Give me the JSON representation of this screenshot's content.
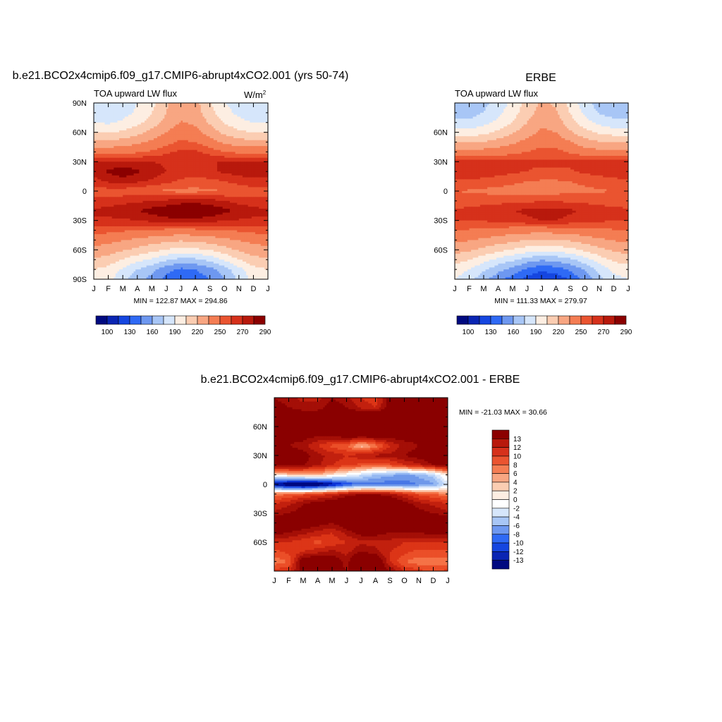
{
  "colors": {
    "positive_ramp": [
      "#fde3d3",
      "#fcbfa1",
      "#fb9a72",
      "#f57347",
      "#eb4f28",
      "#dc3517",
      "#c2200e",
      "#a40f07",
      "#8a0000"
    ],
    "negative_ramp": [
      "#dbe8fb",
      "#b8d2f8",
      "#95b8f2",
      "#6f98ea",
      "#4877e6",
      "#2454ea",
      "#0c33d6",
      "#0018a8",
      "#000880"
    ],
    "neutral": "#ffffff"
  },
  "chart_data": [
    {
      "type": "heatmap",
      "id": "model",
      "title": "b.e21.BCO2x4cmip6.f09_g17.CMIP6-abrupt4xCO2.001 (yrs 50-74)",
      "variable_label": "TOA upward LW flux",
      "units": "W/m",
      "units_superscript": "2",
      "x_ticks": [
        "J",
        "F",
        "M",
        "A",
        "M",
        "J",
        "J",
        "A",
        "S",
        "O",
        "N",
        "D",
        "J"
      ],
      "y_ticks": [
        "90N",
        "60N",
        "30N",
        "0",
        "30S",
        "60S",
        "90S"
      ],
      "ylim": [
        -90,
        90
      ],
      "stats": "MIN = 122.87 MAX = 294.86",
      "min": 122.87,
      "max": 294.86,
      "colorbar_levels": [
        100,
        130,
        160,
        190,
        220,
        250,
        270,
        290
      ],
      "colorbar_colors": [
        "#000a80",
        "#0a25b3",
        "#1546e0",
        "#2f6af5",
        "#6e98f0",
        "#a8c6f6",
        "#d6e6fb",
        "#fdeee2",
        "#fbcdb2",
        "#f8a682",
        "#f47d53",
        "#ea5430",
        "#d6311b",
        "#b8190c",
        "#8b0000"
      ],
      "field": {
        "lat": [
          -90,
          -80,
          -70,
          -60,
          -50,
          -40,
          -30,
          -20,
          -10,
          0,
          10,
          20,
          30,
          40,
          50,
          60,
          70,
          80,
          90
        ],
        "months": [
          "J",
          "F",
          "M",
          "A",
          "M",
          "J",
          "J",
          "A",
          "S",
          "O",
          "N",
          "D",
          "J"
        ],
        "values": [
          [
            200,
            195,
            180,
            165,
            155,
            140,
            130,
            135,
            145,
            160,
            178,
            195,
            200
          ],
          [
            205,
            200,
            188,
            175,
            165,
            150,
            142,
            145,
            155,
            168,
            185,
            200,
            205
          ],
          [
            218,
            214,
            204,
            195,
            188,
            178,
            170,
            172,
            180,
            192,
            205,
            215,
            218
          ],
          [
            230,
            228,
            222,
            216,
            210,
            204,
            200,
            202,
            206,
            214,
            222,
            228,
            230
          ],
          [
            242,
            240,
            236,
            232,
            228,
            225,
            222,
            224,
            227,
            232,
            236,
            240,
            242
          ],
          [
            255,
            254,
            252,
            250,
            248,
            247,
            246,
            247,
            248,
            250,
            252,
            254,
            255
          ],
          [
            268,
            268,
            268,
            270,
            273,
            276,
            278,
            277,
            274,
            271,
            269,
            268,
            268
          ],
          [
            272,
            274,
            277,
            280,
            284,
            288,
            292,
            293,
            289,
            283,
            278,
            274,
            272
          ],
          [
            262,
            264,
            266,
            268,
            270,
            272,
            275,
            276,
            274,
            270,
            266,
            263,
            262
          ],
          [
            256,
            255,
            254,
            252,
            250,
            248,
            247,
            247,
            248,
            250,
            252,
            255,
            256
          ],
          [
            266,
            272,
            276,
            272,
            268,
            263,
            258,
            256,
            257,
            260,
            264,
            267,
            266
          ],
          [
            274,
            282,
            286,
            282,
            276,
            270,
            266,
            266,
            268,
            272,
            275,
            276,
            274
          ],
          [
            270,
            272,
            272,
            271,
            270,
            268,
            268,
            269,
            270,
            270,
            270,
            271,
            270
          ],
          [
            245,
            245,
            246,
            248,
            252,
            258,
            262,
            262,
            256,
            250,
            247,
            245,
            245
          ],
          [
            225,
            224,
            226,
            232,
            238,
            246,
            252,
            250,
            242,
            232,
            226,
            225,
            225
          ],
          [
            205,
            203,
            208,
            215,
            225,
            235,
            244,
            240,
            228,
            216,
            208,
            205,
            205
          ],
          [
            190,
            188,
            193,
            200,
            212,
            225,
            236,
            232,
            218,
            204,
            195,
            190,
            190
          ],
          [
            180,
            178,
            184,
            193,
            205,
            220,
            232,
            228,
            210,
            196,
            186,
            180,
            180
          ],
          [
            176,
            175,
            180,
            190,
            200,
            218,
            230,
            225,
            206,
            190,
            182,
            178,
            176
          ]
        ]
      }
    },
    {
      "type": "heatmap",
      "id": "obs",
      "title": "ERBE",
      "variable_label": "TOA upward LW flux",
      "x_ticks": [
        "J",
        "F",
        "M",
        "A",
        "M",
        "J",
        "J",
        "A",
        "S",
        "O",
        "N",
        "D",
        "J"
      ],
      "y_ticks": [
        "60N",
        "30N",
        "0",
        "30S",
        "60S"
      ],
      "ylim": [
        -90,
        90
      ],
      "stats": "MIN = 111.33 MAX = 279.97",
      "min": 111.33,
      "max": 279.97,
      "colorbar_levels": [
        100,
        130,
        160,
        190,
        220,
        250,
        270,
        290
      ],
      "colorbar_colors": [
        "#000a80",
        "#0a25b3",
        "#1546e0",
        "#2f6af5",
        "#6e98f0",
        "#a8c6f6",
        "#d6e6fb",
        "#fdeee2",
        "#fbcdb2",
        "#f8a682",
        "#f47d53",
        "#ea5430",
        "#d6311b",
        "#b8190c",
        "#8b0000"
      ],
      "field": {
        "lat": [
          -90,
          -80,
          -70,
          -60,
          -50,
          -40,
          -30,
          -20,
          -10,
          0,
          10,
          20,
          30,
          40,
          50,
          60,
          70,
          80,
          90
        ],
        "months": [
          "J",
          "F",
          "M",
          "A",
          "M",
          "J",
          "J",
          "A",
          "S",
          "O",
          "N",
          "D",
          "J"
        ],
        "values": [
          [
            190,
            180,
            165,
            150,
            138,
            125,
            115,
            120,
            132,
            150,
            170,
            185,
            190
          ],
          [
            198,
            190,
            178,
            165,
            155,
            142,
            134,
            138,
            148,
            162,
            180,
            194,
            198
          ],
          [
            212,
            206,
            196,
            186,
            178,
            168,
            162,
            165,
            172,
            184,
            198,
            208,
            212
          ],
          [
            226,
            222,
            216,
            210,
            204,
            198,
            194,
            196,
            200,
            208,
            216,
            222,
            226
          ],
          [
            238,
            236,
            232,
            228,
            224,
            220,
            218,
            220,
            222,
            228,
            232,
            236,
            238
          ],
          [
            250,
            249,
            247,
            245,
            243,
            242,
            241,
            242,
            243,
            245,
            247,
            249,
            250
          ],
          [
            260,
            260,
            261,
            263,
            266,
            268,
            270,
            270,
            267,
            264,
            262,
            260,
            260
          ],
          [
            262,
            263,
            266,
            268,
            270,
            272,
            274,
            274,
            272,
            268,
            265,
            263,
            262
          ],
          [
            254,
            254,
            255,
            256,
            257,
            258,
            259,
            259,
            258,
            257,
            256,
            255,
            254
          ],
          [
            250,
            249,
            248,
            247,
            246,
            245,
            245,
            246,
            247,
            248,
            249,
            250,
            250
          ],
          [
            258,
            258,
            256,
            254,
            252,
            250,
            249,
            249,
            250,
            252,
            254,
            256,
            258
          ],
          [
            270,
            270,
            268,
            265,
            262,
            260,
            258,
            258,
            259,
            262,
            265,
            268,
            270
          ],
          [
            264,
            264,
            263,
            262,
            262,
            262,
            262,
            262,
            262,
            262,
            263,
            264,
            264
          ],
          [
            240,
            240,
            241,
            243,
            246,
            250,
            254,
            254,
            248,
            243,
            240,
            240,
            240
          ],
          [
            220,
            219,
            221,
            226,
            232,
            240,
            246,
            244,
            236,
            226,
            221,
            220,
            220
          ],
          [
            198,
            196,
            200,
            208,
            218,
            228,
            238,
            235,
            222,
            210,
            202,
            198,
            198
          ],
          [
            180,
            178,
            185,
            194,
            206,
            220,
            232,
            228,
            212,
            196,
            186,
            180,
            180
          ],
          [
            168,
            168,
            176,
            186,
            198,
            214,
            226,
            222,
            204,
            186,
            174,
            168,
            168
          ],
          [
            160,
            162,
            170,
            182,
            194,
            210,
            222,
            218,
            200,
            180,
            168,
            162,
            160
          ]
        ]
      }
    },
    {
      "type": "heatmap",
      "id": "diff",
      "title": "b.e21.BCO2x4cmip6.f09_g17.CMIP6-abrupt4xCO2.001 - ERBE",
      "x_ticks": [
        "J",
        "F",
        "M",
        "A",
        "M",
        "J",
        "J",
        "A",
        "S",
        "O",
        "N",
        "D",
        "J"
      ],
      "y_ticks": [
        "60N",
        "30N",
        "0",
        "30S",
        "60S"
      ],
      "ylim": [
        -90,
        90
      ],
      "stats": "MIN = -21.03 MAX =  30.66",
      "min": -21.03,
      "max": 30.66,
      "colorbar_labels": [
        "13",
        "12",
        "10",
        "8",
        "6",
        "4",
        "2",
        "0",
        "-2",
        "-4",
        "-6",
        "-8",
        "-10",
        "-12",
        "-13"
      ],
      "colorbar_colors": [
        "#8b0000",
        "#b8190c",
        "#d6311b",
        "#ea5430",
        "#f47d53",
        "#f8a682",
        "#fbcdb2",
        "#fdeee2",
        "#ffffff",
        "#d6e6fb",
        "#a8c6f6",
        "#6e98f0",
        "#2f6af5",
        "#1546e0",
        "#0a25b3",
        "#000a80"
      ],
      "field": {
        "lat": [
          -90,
          -80,
          -70,
          -60,
          -50,
          -40,
          -30,
          -20,
          -10,
          0,
          10,
          20,
          30,
          40,
          50,
          60,
          70,
          80,
          90
        ],
        "months": [
          "J",
          "F",
          "M",
          "A",
          "M",
          "J",
          "J",
          "A",
          "S",
          "O",
          "N",
          "D",
          "J"
        ],
        "values": [
          [
            9,
            10,
            14,
            14,
            15,
            13,
            14,
            15,
            13,
            10,
            9,
            8,
            9
          ],
          [
            6,
            7,
            15,
            16,
            15,
            12,
            18,
            16,
            10,
            7,
            6,
            6,
            6
          ],
          [
            8,
            9,
            10,
            11,
            12,
            11,
            13,
            12,
            10,
            9,
            8,
            8,
            8
          ],
          [
            10,
            10,
            9,
            8,
            9,
            10,
            11,
            11,
            11,
            10,
            10,
            10,
            10
          ],
          [
            14,
            13,
            12,
            11,
            10,
            12,
            14,
            14,
            13,
            13,
            13,
            14,
            14
          ],
          [
            16,
            16,
            15,
            14,
            13,
            15,
            16,
            17,
            16,
            16,
            16,
            16,
            16
          ],
          [
            12,
            13,
            14,
            15,
            15,
            16,
            17,
            17,
            16,
            15,
            14,
            13,
            12
          ],
          [
            10,
            11,
            13,
            14,
            15,
            16,
            17,
            17,
            16,
            14,
            12,
            11,
            10
          ],
          [
            6,
            7,
            8,
            9,
            10,
            12,
            13,
            13,
            12,
            10,
            8,
            7,
            6
          ],
          [
            -13,
            -16,
            -18,
            -16,
            -13,
            -10,
            -8,
            -8,
            -8,
            -8,
            -7,
            -6,
            -2
          ],
          [
            2,
            3,
            4,
            4,
            2,
            0,
            -2,
            -4,
            -5,
            -6,
            -5,
            -3,
            2
          ],
          [
            14,
            14,
            13,
            12,
            10,
            9,
            8,
            7,
            8,
            10,
            11,
            13,
            14
          ],
          [
            15,
            15,
            14,
            12,
            11,
            10,
            11,
            12,
            12,
            13,
            14,
            15,
            15
          ],
          [
            14,
            13,
            12,
            10,
            8,
            7,
            3,
            6,
            10,
            12,
            13,
            14,
            14
          ],
          [
            15,
            14,
            14,
            13,
            13,
            14,
            14,
            14,
            14,
            14,
            14,
            15,
            15
          ],
          [
            15,
            15,
            15,
            15,
            16,
            16,
            15,
            15,
            15,
            15,
            15,
            15,
            15
          ],
          [
            15,
            15,
            15,
            15,
            16,
            16,
            16,
            16,
            16,
            15,
            15,
            15,
            15
          ],
          [
            14,
            13,
            12,
            12,
            14,
            13,
            11,
            10,
            14,
            15,
            15,
            15,
            14
          ],
          [
            13,
            12,
            11,
            11,
            13,
            12,
            10,
            9,
            14,
            15,
            15,
            15,
            13
          ]
        ]
      }
    }
  ]
}
